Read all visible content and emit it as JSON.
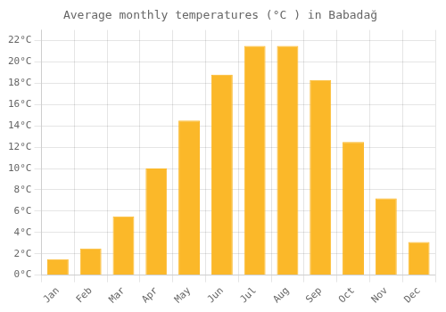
{
  "chart_data": {
    "type": "bar",
    "title": "Average monthly temperatures (°C ) in Babadağ",
    "categories": [
      "Jan",
      "Feb",
      "Mar",
      "Apr",
      "May",
      "Jun",
      "Jul",
      "Aug",
      "Sep",
      "Oct",
      "Nov",
      "Dec"
    ],
    "values": [
      1.5,
      2.5,
      5.5,
      10.0,
      14.5,
      18.8,
      21.5,
      21.5,
      18.3,
      12.5,
      7.2,
      3.1
    ],
    "color": "#FBB829",
    "ylim": [
      0,
      23
    ],
    "yticks": [
      {
        "value": 0,
        "label": "0°C"
      },
      {
        "value": 2,
        "label": "2°C"
      },
      {
        "value": 4,
        "label": "4°C"
      },
      {
        "value": 6,
        "label": "6°C"
      },
      {
        "value": 8,
        "label": "8°C"
      },
      {
        "value": 10,
        "label": "10°C"
      },
      {
        "value": 12,
        "label": "12°C"
      },
      {
        "value": 14,
        "label": "14°C"
      },
      {
        "value": 16,
        "label": "16°C"
      },
      {
        "value": 18,
        "label": "18°C"
      },
      {
        "value": 20,
        "label": "20°C"
      },
      {
        "value": 22,
        "label": "22°C"
      }
    ],
    "grid": true
  }
}
